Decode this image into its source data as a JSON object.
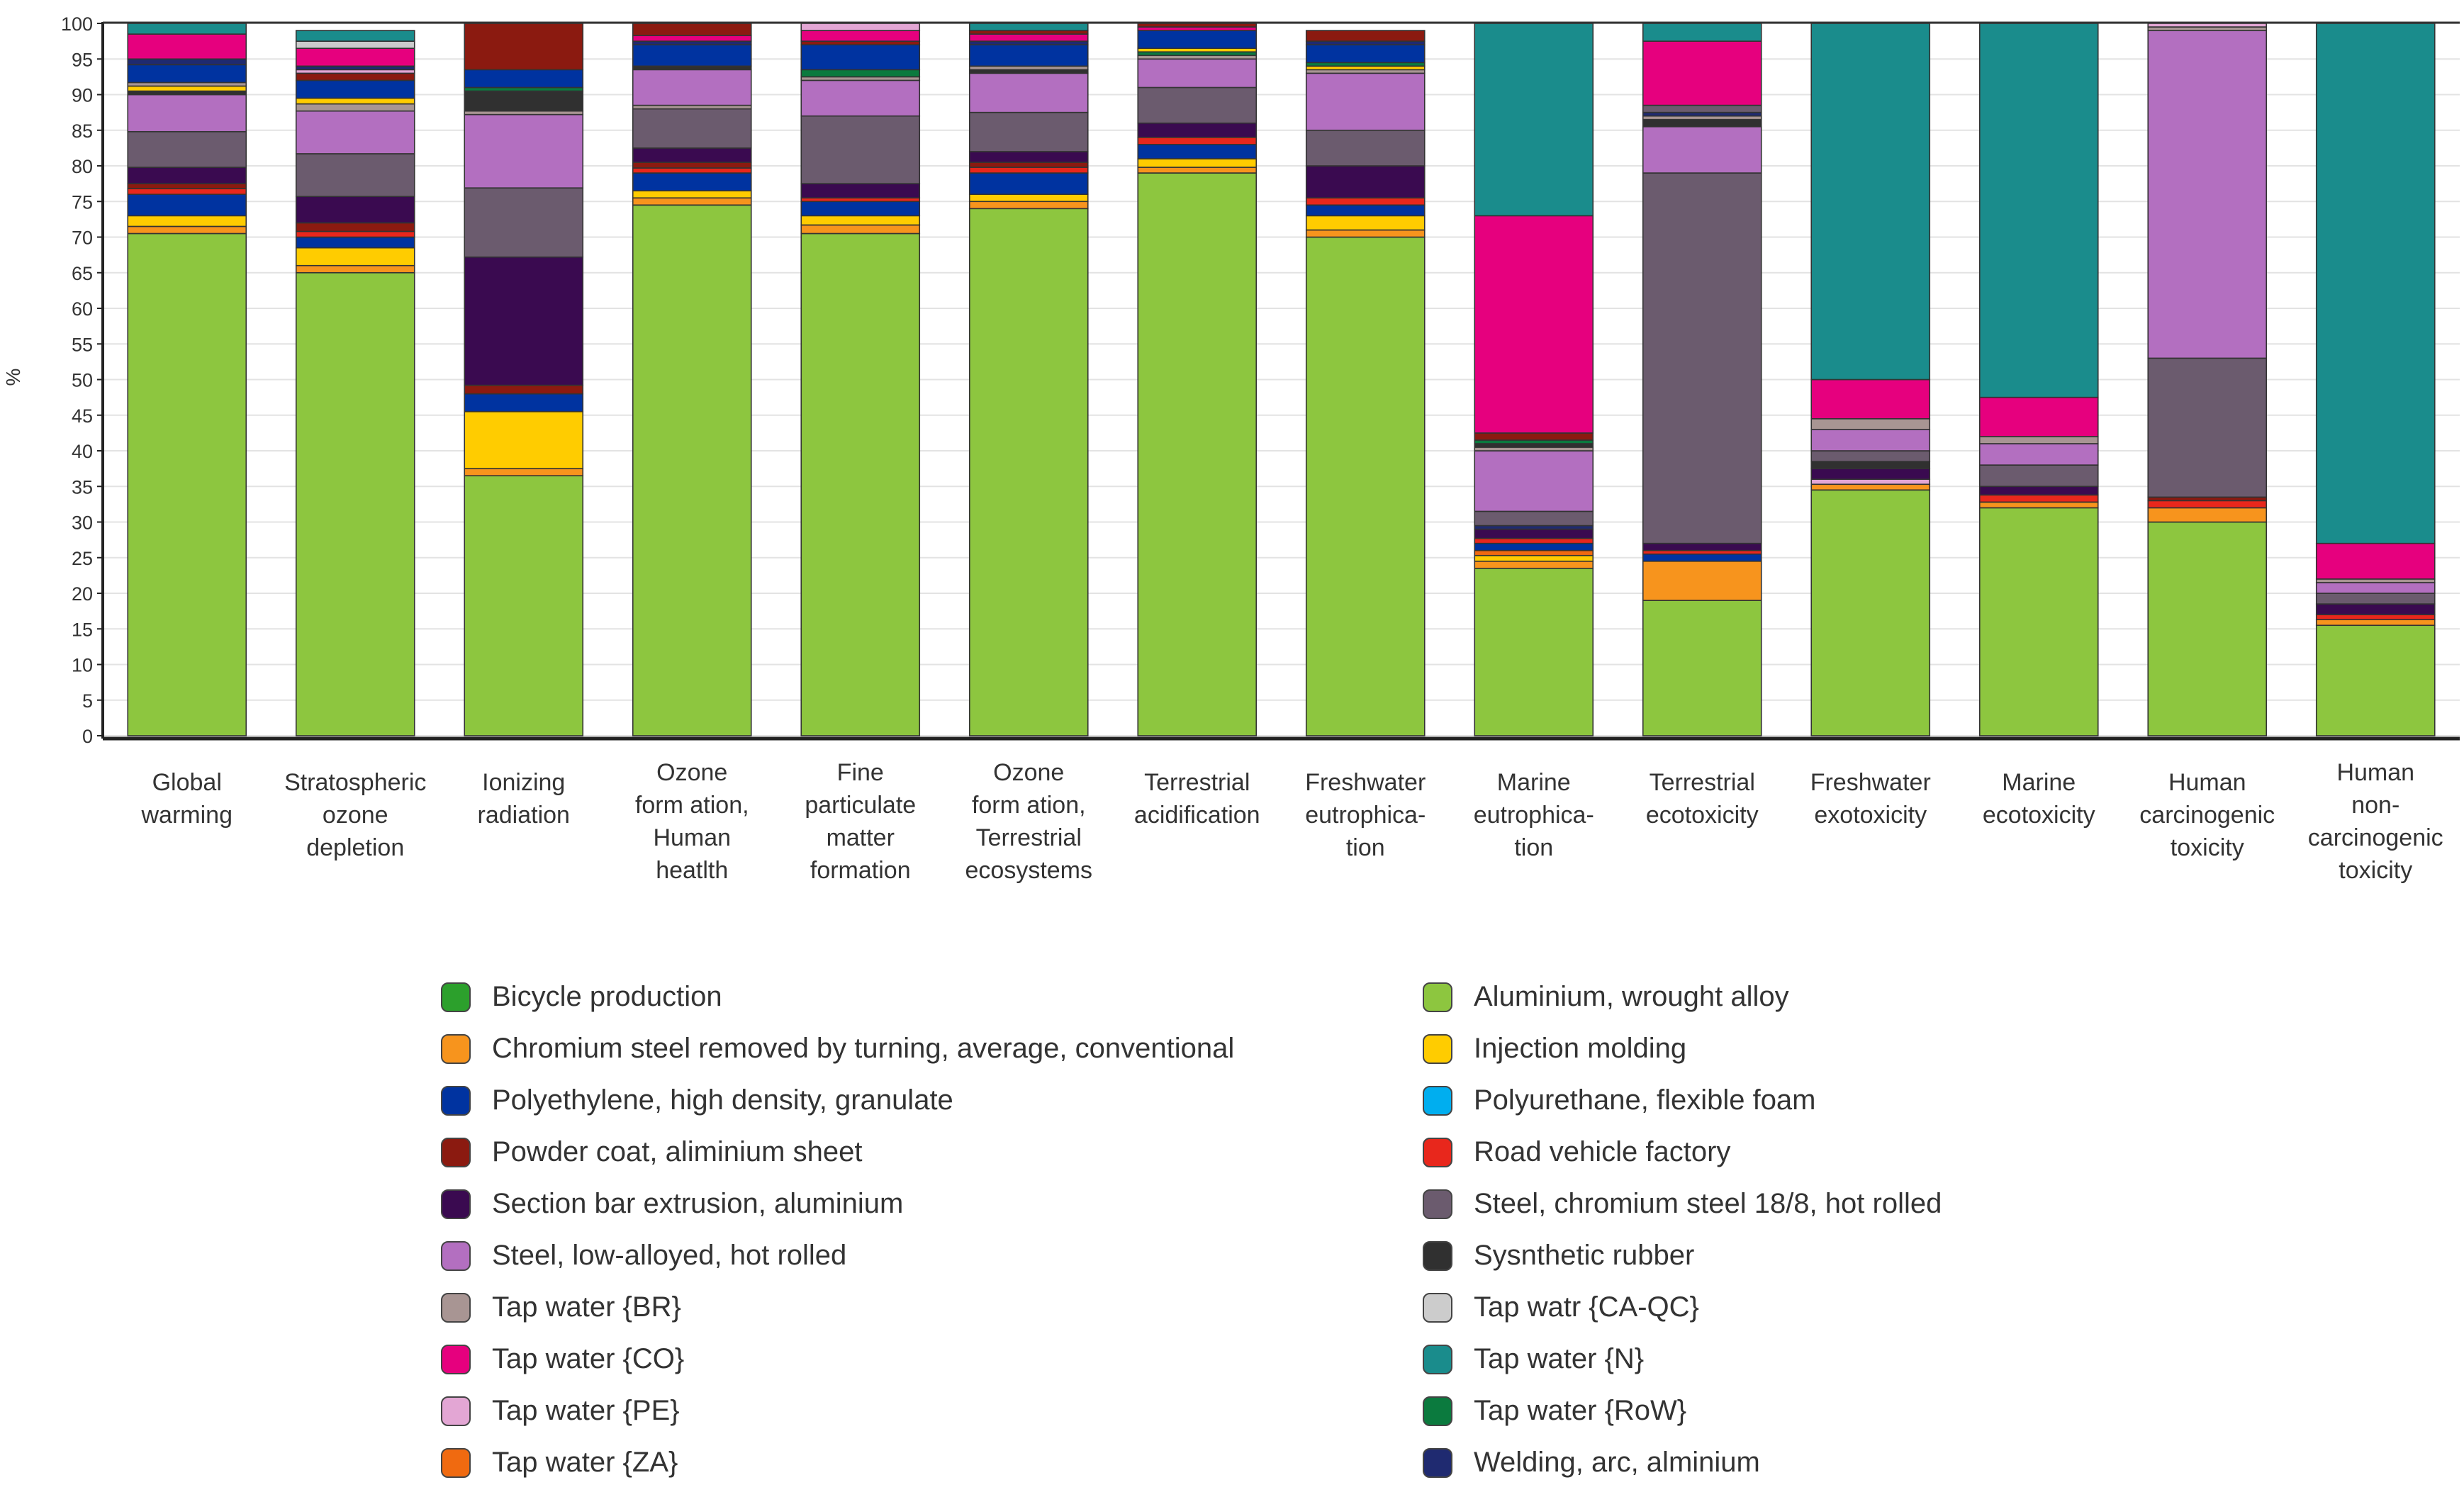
{
  "chart_data": {
    "type": "bar",
    "stacked": true,
    "ylabel": "%",
    "ylim": [
      0,
      100
    ],
    "yticks": [
      0,
      5,
      10,
      15,
      20,
      25,
      30,
      35,
      40,
      45,
      50,
      55,
      60,
      65,
      70,
      75,
      80,
      85,
      90,
      95,
      100
    ],
    "grid": true,
    "categories": [
      [
        "Global",
        "warming"
      ],
      [
        "Stratospheric",
        "ozone",
        "depletion"
      ],
      [
        "Ionizing",
        "radiation"
      ],
      [
        "Ozone",
        "form ation,",
        "Human",
        "heatlth"
      ],
      [
        "Fine",
        "particulate",
        "matter",
        "formation"
      ],
      [
        "Ozone",
        "form ation,",
        "Terrestrial",
        "ecosystems"
      ],
      [
        "Terrestrial",
        "acidification"
      ],
      [
        "Freshwater",
        "eutrophica-",
        "tion"
      ],
      [
        "Marine",
        "eutrophica-",
        "tion"
      ],
      [
        "Terrestrial",
        "ecotoxicity"
      ],
      [
        "Freshwater",
        "exotoxicity"
      ],
      [
        "Marine",
        "ecotoxicity"
      ],
      [
        "Human",
        "carcinogenic",
        "toxicity"
      ],
      [
        "Human",
        "non-",
        "carcinogenic",
        "toxicity"
      ]
    ],
    "legend": [
      {
        "name": "Bicycle production",
        "color": "#2ca02c"
      },
      {
        "name": "Aluminium, wrought alloy",
        "color": "#8dc63f"
      },
      {
        "name": "Chromium steel removed by turning, average, conventional",
        "color": "#f7941d"
      },
      {
        "name": "Injection molding",
        "color": "#ffcc00"
      },
      {
        "name": "Polyethylene, high density, granulate",
        "color": "#0033a0"
      },
      {
        "name": "Polyurethane, flexible foam",
        "color": "#00aeef"
      },
      {
        "name": "Powder coat, aliminium sheet",
        "color": "#8b1a10"
      },
      {
        "name": "Road vehicle factory",
        "color": "#e8271c"
      },
      {
        "name": "Section bar extrusion, aluminium",
        "color": "#3a0a50"
      },
      {
        "name": "Steel, chromium steel 18/8, hot rolled",
        "color": "#6b5b6e"
      },
      {
        "name": "Steel, low-alloyed, hot rolled",
        "color": "#b36fc0"
      },
      {
        "name": "Sysnthetic rubber",
        "color": "#303030"
      },
      {
        "name": "Tap water {BR}",
        "color": "#a89593"
      },
      {
        "name": "Tap watr {CA-QC}",
        "color": "#cccccc"
      },
      {
        "name": "Tap water {CO}",
        "color": "#e6007e"
      },
      {
        "name": "Tap water {N}",
        "color": "#1a8c8c"
      },
      {
        "name": "Tap water {PE}",
        "color": "#e3a6d4"
      },
      {
        "name": "Tap water {RoW}",
        "color": "#0b7a3e"
      },
      {
        "name": "Tap water {ZA}",
        "color": "#f06a10"
      },
      {
        "name": "Welding, arc, alminium",
        "color": "#1f2a70"
      }
    ],
    "series_stacks": [
      [
        [
          "Aluminium, wrought alloy",
          70.5
        ],
        [
          "Chromium steel removed by turning, average, conventional",
          1.0
        ],
        [
          "Injection molding",
          1.5
        ],
        [
          "Polyethylene, high density, granulate",
          3.0
        ],
        [
          "Road vehicle factory",
          0.8
        ],
        [
          "Powder coat, aliminium sheet",
          0.7
        ],
        [
          "Section bar extrusion, aluminium",
          2.3
        ],
        [
          "Steel, chromium steel 18/8, hot rolled",
          5.0
        ],
        [
          "Steel, low-alloyed, hot rolled",
          5.2
        ],
        [
          "Sysnthetic rubber",
          0.5
        ],
        [
          "Injection molding",
          0.7
        ],
        [
          "Tap water {BR}",
          0.5
        ],
        [
          "Polyethylene, high density, granulate",
          2.5
        ],
        [
          "Welding, arc, alminium",
          0.8
        ],
        [
          "Tap water {CO}",
          3.5
        ],
        [
          "Tap water {N}",
          1.5
        ]
      ],
      [
        [
          "Aluminium, wrought alloy",
          65.0
        ],
        [
          "Chromium steel removed by turning, average, conventional",
          1.0
        ],
        [
          "Injection molding",
          2.5
        ],
        [
          "Polyethylene, high density, granulate",
          1.5
        ],
        [
          "Road vehicle factory",
          0.8
        ],
        [
          "Powder coat, aliminium sheet",
          1.2
        ],
        [
          "Section bar extrusion, aluminium",
          3.7
        ],
        [
          "Steel, chromium steel 18/8, hot rolled",
          6.0
        ],
        [
          "Steel, low-alloyed, hot rolled",
          6.0
        ],
        [
          "Tap water {BR}",
          1.0
        ],
        [
          "Injection molding",
          0.8
        ],
        [
          "Polyethylene, high density, granulate",
          2.5
        ],
        [
          "Powder coat, aliminium sheet",
          1.0
        ],
        [
          "Tap water {PE}",
          0.5
        ],
        [
          "Welding, arc, alminium",
          0.5
        ],
        [
          "Tap water {CO}",
          2.5
        ],
        [
          "Tap watr {CA-QC}",
          1.0
        ],
        [
          "Tap water {N}",
          1.5
        ]
      ],
      [
        [
          "Aluminium, wrought alloy",
          36.5
        ],
        [
          "Chromium steel removed by turning, average, conventional",
          1.0
        ],
        [
          "Injection molding",
          8.0
        ],
        [
          "Polyethylene, high density, granulate",
          2.5
        ],
        [
          "Powder coat, aliminium sheet",
          1.2
        ],
        [
          "Section bar extrusion, aluminium",
          18.0
        ],
        [
          "Steel, chromium steel 18/8, hot rolled",
          9.7
        ],
        [
          "Steel, low-alloyed, hot rolled",
          10.3
        ],
        [
          "Tap water {BR}",
          0.5
        ],
        [
          "Sysnthetic rubber",
          2.8
        ],
        [
          "Tap water {RoW}",
          0.5
        ],
        [
          "Polyethylene, high density, granulate",
          2.5
        ],
        [
          "Powder coat, aliminium sheet",
          6.5
        ]
      ],
      [
        [
          "Aluminium, wrought alloy",
          74.5
        ],
        [
          "Chromium steel removed by turning, average, conventional",
          1.0
        ],
        [
          "Injection molding",
          1.0
        ],
        [
          "Polyethylene, high density, granulate",
          2.5
        ],
        [
          "Road vehicle factory",
          0.7
        ],
        [
          "Powder coat, aliminium sheet",
          0.8
        ],
        [
          "Section bar extrusion, aluminium",
          2.0
        ],
        [
          "Steel, chromium steel 18/8, hot rolled",
          5.5
        ],
        [
          "Tap water {BR}",
          0.5
        ],
        [
          "Steel, low-alloyed, hot rolled",
          5.0
        ],
        [
          "Sysnthetic rubber",
          0.5
        ],
        [
          "Polyethylene, high density, granulate",
          3.0
        ],
        [
          "Welding, arc, alminium",
          0.5
        ],
        [
          "Tap water {CO}",
          0.8
        ],
        [
          "Powder coat, aliminium sheet",
          1.7
        ]
      ],
      [
        [
          "Aluminium, wrought alloy",
          70.5
        ],
        [
          "Chromium steel removed by turning, average, conventional",
          1.2
        ],
        [
          "Injection molding",
          1.3
        ],
        [
          "Polyethylene, high density, granulate",
          2.0
        ],
        [
          "Road vehicle factory",
          0.5
        ],
        [
          "Section bar extrusion, aluminium",
          2.0
        ],
        [
          "Steel, chromium steel 18/8, hot rolled",
          9.5
        ],
        [
          "Steel, low-alloyed, hot rolled",
          5.0
        ],
        [
          "Tap water {BR}",
          0.5
        ],
        [
          "Tap water {RoW}",
          1.0
        ],
        [
          "Polyethylene, high density, granulate",
          3.5
        ],
        [
          "Powder coat, aliminium sheet",
          0.5
        ],
        [
          "Tap water {CO}",
          1.5
        ],
        [
          "Tap water {PE}",
          1.0
        ]
      ],
      [
        [
          "Aluminium, wrought alloy",
          74.0
        ],
        [
          "Chromium steel removed by turning, average, conventional",
          1.0
        ],
        [
          "Injection molding",
          1.0
        ],
        [
          "Polyethylene, high density, granulate",
          3.0
        ],
        [
          "Road vehicle factory",
          0.8
        ],
        [
          "Powder coat, aliminium sheet",
          0.7
        ],
        [
          "Section bar extrusion, aluminium",
          1.5
        ],
        [
          "Steel, chromium steel 18/8, hot rolled",
          5.5
        ],
        [
          "Steel, low-alloyed, hot rolled",
          5.5
        ],
        [
          "Sysnthetic rubber",
          0.5
        ],
        [
          "Tap water {BR}",
          0.5
        ],
        [
          "Polyethylene, high density, granulate",
          3.0
        ],
        [
          "Welding, arc, alminium",
          0.5
        ],
        [
          "Tap water {CO}",
          1.0
        ],
        [
          "Powder coat, aliminium sheet",
          0.5
        ],
        [
          "Tap water {N}",
          1.0
        ]
      ],
      [
        [
          "Aluminium, wrought alloy",
          79.0
        ],
        [
          "Chromium steel removed by turning, average, conventional",
          0.8
        ],
        [
          "Injection molding",
          1.2
        ],
        [
          "Polyethylene, high density, granulate",
          2.0
        ],
        [
          "Road vehicle factory",
          1.0
        ],
        [
          "Section bar extrusion, aluminium",
          2.0
        ],
        [
          "Steel, chromium steel 18/8, hot rolled",
          5.0
        ],
        [
          "Steel, low-alloyed, hot rolled",
          4.0
        ],
        [
          "Tap water {BR}",
          0.5
        ],
        [
          "Tap water {RoW}",
          0.5
        ],
        [
          "Injection molding",
          0.5
        ],
        [
          "Polyethylene, high density, granulate",
          2.5
        ],
        [
          "Tap water {CO}",
          0.5
        ],
        [
          "Powder coat, aliminium sheet",
          0.5
        ]
      ],
      [
        [
          "Aluminium, wrought alloy",
          70.0
        ],
        [
          "Chromium steel removed by turning, average, conventional",
          1.0
        ],
        [
          "Injection molding",
          2.0
        ],
        [
          "Polyethylene, high density, granulate",
          1.5
        ],
        [
          "Road vehicle factory",
          1.0
        ],
        [
          "Section bar extrusion, aluminium",
          4.5
        ],
        [
          "Steel, chromium steel 18/8, hot rolled",
          5.0
        ],
        [
          "Steel, low-alloyed, hot rolled",
          8.0
        ],
        [
          "Tap water {BR}",
          0.5
        ],
        [
          "Injection molding",
          0.5
        ],
        [
          "Tap water {RoW}",
          0.5
        ],
        [
          "Polyethylene, high density, granulate",
          2.5
        ],
        [
          "Welding, arc, alminium",
          0.5
        ],
        [
          "Powder coat, aliminium sheet",
          1.5
        ]
      ],
      [
        [
          "Aluminium, wrought alloy",
          23.5
        ],
        [
          "Chromium steel removed by turning, average, conventional",
          1.0
        ],
        [
          "Injection molding",
          0.8
        ],
        [
          "Tap water {ZA}",
          0.7
        ],
        [
          "Polyethylene, high density, granulate",
          1.0
        ],
        [
          "Road vehicle factory",
          0.7
        ],
        [
          "Section bar extrusion, aluminium",
          1.3
        ],
        [
          "Welding, arc, alminium",
          0.5
        ],
        [
          "Steel, chromium steel 18/8, hot rolled",
          2.0
        ],
        [
          "Steel, low-alloyed, hot rolled",
          8.5
        ],
        [
          "Tap water {BR}",
          0.5
        ],
        [
          "Sysnthetic rubber",
          0.5
        ],
        [
          "Tap water {RoW}",
          0.5
        ],
        [
          "Powder coat, aliminium sheet",
          1.0
        ],
        [
          "Tap water {CO}",
          30.5
        ],
        [
          "Tap water {N}",
          27.0
        ]
      ],
      [
        [
          "Aluminium, wrought alloy",
          19.0
        ],
        [
          "Chromium steel removed by turning, average, conventional",
          5.5
        ],
        [
          "Polyethylene, high density, granulate",
          1.0
        ],
        [
          "Road vehicle factory",
          0.5
        ],
        [
          "Section bar extrusion, aluminium",
          1.0
        ],
        [
          "Steel, chromium steel 18/8, hot rolled",
          52.0
        ],
        [
          "Steel, low-alloyed, hot rolled",
          6.5
        ],
        [
          "Sysnthetic rubber",
          1.0
        ],
        [
          "Tap water {BR}",
          0.5
        ],
        [
          "Welding, arc, alminium",
          0.5
        ],
        [
          "Steel, chromium steel 18/8, hot rolled",
          1.0
        ],
        [
          "Tap water {CO}",
          9.0
        ],
        [
          "Tap water {N}",
          2.5
        ]
      ],
      [
        [
          "Aluminium, wrought alloy",
          34.5
        ],
        [
          "Chromium steel removed by turning, average, conventional",
          0.8
        ],
        [
          "Tap water {PE}",
          0.7
        ],
        [
          "Section bar extrusion, aluminium",
          1.5
        ],
        [
          "Sysnthetic rubber",
          1.0
        ],
        [
          "Steel, chromium steel 18/8, hot rolled",
          1.5
        ],
        [
          "Steel, low-alloyed, hot rolled",
          3.0
        ],
        [
          "Tap water {BR}",
          1.5
        ],
        [
          "Tap water {CO}",
          5.5
        ],
        [
          "Tap water {N}",
          50.0
        ]
      ],
      [
        [
          "Aluminium, wrought alloy",
          32.0
        ],
        [
          "Chromium steel removed by turning, average, conventional",
          0.8
        ],
        [
          "Road vehicle factory",
          1.0
        ],
        [
          "Section bar extrusion, aluminium",
          1.2
        ],
        [
          "Steel, chromium steel 18/8, hot rolled",
          3.0
        ],
        [
          "Steel, low-alloyed, hot rolled",
          3.0
        ],
        [
          "Tap water {BR}",
          1.0
        ],
        [
          "Tap water {CO}",
          5.5
        ],
        [
          "Tap water {N}",
          52.5
        ]
      ],
      [
        [
          "Aluminium, wrought alloy",
          30.0
        ],
        [
          "Chromium steel removed by turning, average, conventional",
          2.0
        ],
        [
          "Road vehicle factory",
          1.0
        ],
        [
          "Powder coat, aliminium sheet",
          0.5
        ],
        [
          "Steel, chromium steel 18/8, hot rolled",
          19.5
        ],
        [
          "Steel, low-alloyed, hot rolled",
          46.0
        ],
        [
          "Tap water {BR}",
          0.5
        ],
        [
          "Tap water {PE}",
          0.5
        ]
      ],
      [
        [
          "Aluminium, wrought alloy",
          15.5
        ],
        [
          "Chromium steel removed by turning, average, conventional",
          0.8
        ],
        [
          "Road vehicle factory",
          0.7
        ],
        [
          "Section bar extrusion, aluminium",
          1.5
        ],
        [
          "Steel, chromium steel 18/8, hot rolled",
          1.5
        ],
        [
          "Steel, low-alloyed, hot rolled",
          1.5
        ],
        [
          "Tap water {BR}",
          0.5
        ],
        [
          "Tap water {CO}",
          5.0
        ],
        [
          "Tap water {N}",
          73.0
        ]
      ]
    ]
  }
}
